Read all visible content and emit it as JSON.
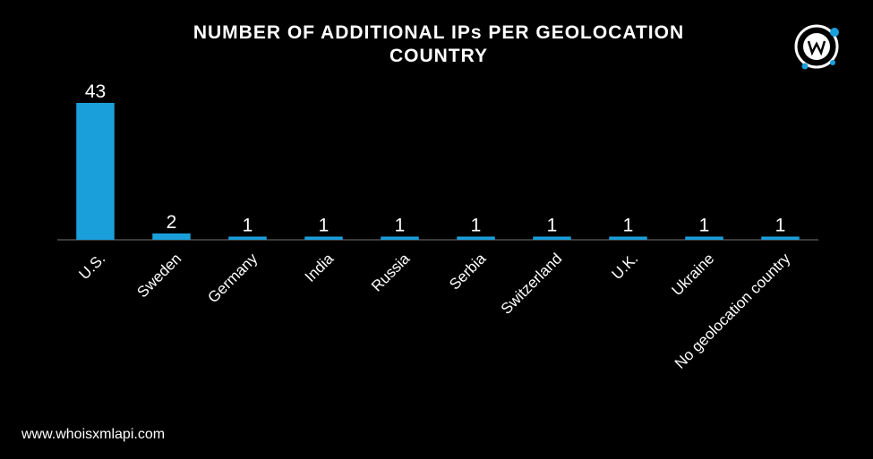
{
  "chart_data": {
    "type": "bar",
    "title": "NUMBER OF ADDITIONAL IPs PER GEOLOCATION COUNTRY",
    "categories": [
      "U.S.",
      "Sweden",
      "Germany",
      "India",
      "Russia",
      "Serbia",
      "Switzerland",
      "U.K.",
      "Ukraine",
      "No geolocation country"
    ],
    "values": [
      43,
      2,
      1,
      1,
      1,
      1,
      1,
      1,
      1,
      1
    ],
    "color": "#1a9fdb",
    "ylim": [
      0,
      43
    ]
  },
  "footer": "www.whoisxmlapi.com"
}
